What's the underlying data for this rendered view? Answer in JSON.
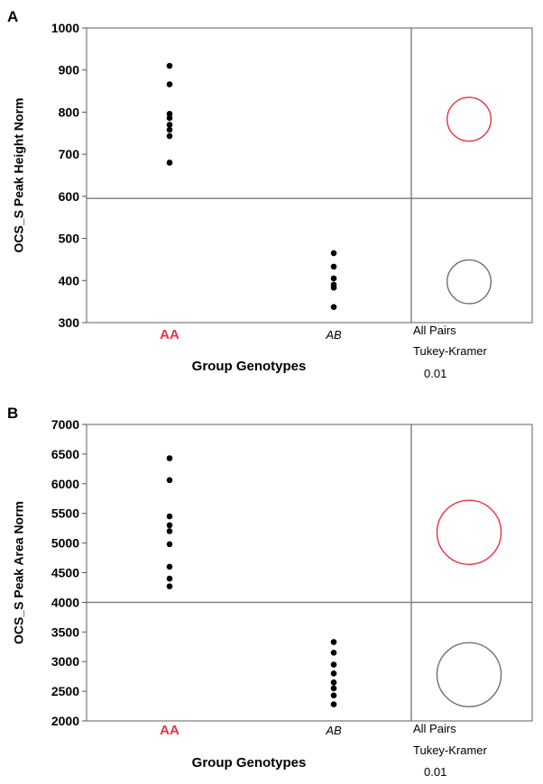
{
  "chart_data": [
    {
      "type": "scatter",
      "panel_label": "A",
      "ylabel": "OCS_S  Peak Height Norm",
      "xlabel": "Group Genotypes",
      "ylim": [
        300,
        1000
      ],
      "yticks": [
        "300",
        "400",
        "500",
        "600",
        "700",
        "800",
        "900",
        "1000"
      ],
      "categories": [
        "AA",
        "AB"
      ],
      "category_colors": [
        "#e8333f",
        "#000000"
      ],
      "category_styles": [
        "bold",
        "italic"
      ],
      "reference_line": 595,
      "points": [
        {
          "category": "AA",
          "y": 910
        },
        {
          "category": "AA",
          "y": 866
        },
        {
          "category": "AA",
          "y": 796
        },
        {
          "category": "AA",
          "y": 786
        },
        {
          "category": "AA",
          "y": 770
        },
        {
          "category": "AA",
          "y": 758
        },
        {
          "category": "AA",
          "y": 743
        },
        {
          "category": "AA",
          "y": 680
        },
        {
          "category": "AB",
          "y": 465
        },
        {
          "category": "AB",
          "y": 433
        },
        {
          "category": "AB",
          "y": 405
        },
        {
          "category": "AB",
          "y": 390
        },
        {
          "category": "AB",
          "y": 383
        },
        {
          "category": "AB",
          "y": 337
        }
      ],
      "comparison_circles": [
        {
          "center": 783,
          "radius": 52,
          "color": "#e8333f"
        },
        {
          "center": 397,
          "radius": 52,
          "color": "#707070"
        }
      ],
      "comparison_label": [
        "All Pairs",
        "Tukey-Kramer",
        "0.01"
      ]
    },
    {
      "type": "scatter",
      "panel_label": "B",
      "ylabel": "OCS_S Peak Area Norm",
      "xlabel": "Group Genotypes",
      "ylim": [
        2000,
        7000
      ],
      "yticks": [
        "2000",
        "2500",
        "3000",
        "3500",
        "4000",
        "4500",
        "5000",
        "5500",
        "6000",
        "6500",
        "7000"
      ],
      "categories": [
        "AA",
        "AB"
      ],
      "category_colors": [
        "#e8333f",
        "#000000"
      ],
      "category_styles": [
        "bold",
        "italic"
      ],
      "reference_line": 4000,
      "points": [
        {
          "category": "AA",
          "y": 6430
        },
        {
          "category": "AA",
          "y": 6060
        },
        {
          "category": "AA",
          "y": 5450
        },
        {
          "category": "AA",
          "y": 5300
        },
        {
          "category": "AA",
          "y": 5200
        },
        {
          "category": "AA",
          "y": 4980
        },
        {
          "category": "AA",
          "y": 4600
        },
        {
          "category": "AA",
          "y": 4400
        },
        {
          "category": "AA",
          "y": 4270
        },
        {
          "category": "AB",
          "y": 3330
        },
        {
          "category": "AB",
          "y": 3150
        },
        {
          "category": "AB",
          "y": 2950
        },
        {
          "category": "AB",
          "y": 2800
        },
        {
          "category": "AB",
          "y": 2650
        },
        {
          "category": "AB",
          "y": 2550
        },
        {
          "category": "AB",
          "y": 2430
        },
        {
          "category": "AB",
          "y": 2280
        }
      ],
      "comparison_circles": [
        {
          "center": 5180,
          "radius": 540,
          "color": "#e8333f"
        },
        {
          "center": 2780,
          "radius": 540,
          "color": "#707070"
        }
      ],
      "comparison_label": [
        "All Pairs",
        "Tukey-Kramer",
        "0.01"
      ]
    }
  ]
}
